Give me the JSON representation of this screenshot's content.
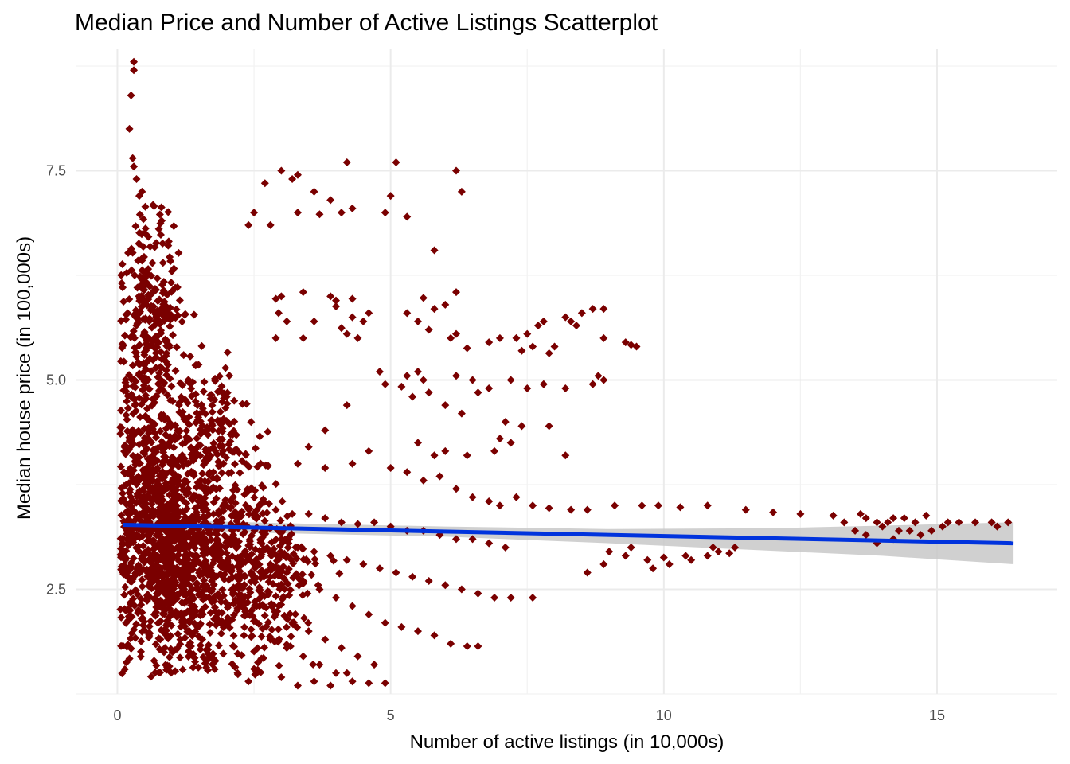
{
  "chart_data": {
    "type": "scatter",
    "title": "Median Price and Number of Active Listings Scatterplot",
    "xlabel": "Number of active listings (in 10,000s)",
    "ylabel": "Median house price (in 100,000s)",
    "xlim": [
      -0.75,
      17.2
    ],
    "ylim": [
      1.25,
      8.95
    ],
    "x_ticks": [
      0,
      5,
      10,
      15
    ],
    "x_tick_labels": [
      "0",
      "5",
      "10",
      "15"
    ],
    "x_minor_ticks": [
      2.5,
      7.5,
      12.5
    ],
    "y_ticks": [
      2.5,
      5.0,
      7.5
    ],
    "y_tick_labels": [
      "2.5",
      "5.0",
      "7.5"
    ],
    "y_minor_ticks": [
      1.25,
      3.75,
      6.25,
      8.75
    ],
    "grid": true,
    "colors": {
      "points": "#7a0000",
      "trend_line": "#0033dd",
      "confidence_band": "#c8c8c8"
    },
    "marker": "diamond",
    "series": [
      {
        "name": "listings",
        "points": [
          [
            0.3,
            8.8
          ],
          [
            0.3,
            8.7
          ],
          [
            0.25,
            8.4
          ],
          [
            0.22,
            8.0
          ],
          [
            0.28,
            7.65
          ],
          [
            0.3,
            7.55
          ],
          [
            0.35,
            7.4
          ],
          [
            0.4,
            7.2
          ],
          [
            0.45,
            7.25
          ],
          [
            3.0,
            7.5
          ],
          [
            3.3,
            7.45
          ],
          [
            4.2,
            7.6
          ],
          [
            5.1,
            7.6
          ],
          [
            6.2,
            7.5
          ],
          [
            6.3,
            7.25
          ],
          [
            2.7,
            7.35
          ],
          [
            3.2,
            7.4
          ],
          [
            3.6,
            7.25
          ],
          [
            3.3,
            7.0
          ],
          [
            3.9,
            7.15
          ],
          [
            4.3,
            7.05
          ],
          [
            4.9,
            7.0
          ],
          [
            5.0,
            7.2
          ],
          [
            5.3,
            6.95
          ],
          [
            4.1,
            7.0
          ],
          [
            3.7,
            6.98
          ],
          [
            2.5,
            7.0
          ],
          [
            2.4,
            6.85
          ],
          [
            2.8,
            6.85
          ],
          [
            5.8,
            6.55
          ],
          [
            3.4,
            6.05
          ],
          [
            3.0,
            6.0
          ],
          [
            2.9,
            5.97
          ],
          [
            3.9,
            6.0
          ],
          [
            4.0,
            5.95
          ],
          [
            4.3,
            5.97
          ],
          [
            4.0,
            5.88
          ],
          [
            6.2,
            6.05
          ],
          [
            2.95,
            5.8
          ],
          [
            4.6,
            5.8
          ],
          [
            4.3,
            5.75
          ],
          [
            4.5,
            5.7
          ],
          [
            5.3,
            5.8
          ],
          [
            5.8,
            5.85
          ],
          [
            6.0,
            5.9
          ],
          [
            5.6,
            5.98
          ],
          [
            3.1,
            5.7
          ],
          [
            3.6,
            5.7
          ],
          [
            4.1,
            5.62
          ],
          [
            4.2,
            5.55
          ],
          [
            5.5,
            5.7
          ],
          [
            5.7,
            5.6
          ],
          [
            6.2,
            5.55
          ],
          [
            6.1,
            5.5
          ],
          [
            2.9,
            5.5
          ],
          [
            3.4,
            5.5
          ],
          [
            4.4,
            5.5
          ],
          [
            6.4,
            5.38
          ],
          [
            6.8,
            5.45
          ],
          [
            7.0,
            5.5
          ],
          [
            7.3,
            5.5
          ],
          [
            7.5,
            5.55
          ],
          [
            7.7,
            5.65
          ],
          [
            7.8,
            5.7
          ],
          [
            8.2,
            5.75
          ],
          [
            8.3,
            5.7
          ],
          [
            8.5,
            5.8
          ],
          [
            8.7,
            5.85
          ],
          [
            8.9,
            5.85
          ],
          [
            8.4,
            5.65
          ],
          [
            8.9,
            5.5
          ],
          [
            9.3,
            5.45
          ],
          [
            9.4,
            5.42
          ],
          [
            9.5,
            5.4
          ],
          [
            8.0,
            5.4
          ],
          [
            7.9,
            5.32
          ],
          [
            7.4,
            5.35
          ],
          [
            7.6,
            5.4
          ],
          [
            4.8,
            5.1
          ],
          [
            4.9,
            4.95
          ],
          [
            5.3,
            5.05
          ],
          [
            5.5,
            5.1
          ],
          [
            5.6,
            5.0
          ],
          [
            5.2,
            4.92
          ],
          [
            6.2,
            5.05
          ],
          [
            6.5,
            5.0
          ],
          [
            6.8,
            4.9
          ],
          [
            7.2,
            5.0
          ],
          [
            7.5,
            4.9
          ],
          [
            7.8,
            4.95
          ],
          [
            8.2,
            4.9
          ],
          [
            8.8,
            5.05
          ],
          [
            8.9,
            5.0
          ],
          [
            8.7,
            4.95
          ],
          [
            5.4,
            4.8
          ],
          [
            5.7,
            4.85
          ],
          [
            6.0,
            4.7
          ],
          [
            6.3,
            4.6
          ],
          [
            6.6,
            4.85
          ],
          [
            7.1,
            4.5
          ],
          [
            7.4,
            4.45
          ],
          [
            7.9,
            4.45
          ],
          [
            8.2,
            4.1
          ],
          [
            7.0,
            4.3
          ],
          [
            6.9,
            4.15
          ],
          [
            7.2,
            4.25
          ],
          [
            6.4,
            4.1
          ],
          [
            6.0,
            4.15
          ],
          [
            5.5,
            4.25
          ],
          [
            5.8,
            4.1
          ],
          [
            4.2,
            4.7
          ],
          [
            3.8,
            4.4
          ],
          [
            3.5,
            4.2
          ],
          [
            3.3,
            4.0
          ],
          [
            3.8,
            3.95
          ],
          [
            4.3,
            4.0
          ],
          [
            4.6,
            4.15
          ],
          [
            5.0,
            3.95
          ],
          [
            5.3,
            3.9
          ],
          [
            5.6,
            3.8
          ],
          [
            5.9,
            3.85
          ],
          [
            6.2,
            3.7
          ],
          [
            6.5,
            3.6
          ],
          [
            6.8,
            3.55
          ],
          [
            7.0,
            3.5
          ],
          [
            7.3,
            3.6
          ],
          [
            7.6,
            3.5
          ],
          [
            7.9,
            3.47
          ],
          [
            8.3,
            3.45
          ],
          [
            8.6,
            3.45
          ],
          [
            9.1,
            3.5
          ],
          [
            9.6,
            3.5
          ],
          [
            9.9,
            3.5
          ],
          [
            10.3,
            3.48
          ],
          [
            10.8,
            3.5
          ],
          [
            11.5,
            3.45
          ],
          [
            12.0,
            3.42
          ],
          [
            12.5,
            3.4
          ],
          [
            13.1,
            3.38
          ],
          [
            13.6,
            3.4
          ],
          [
            9.0,
            2.95
          ],
          [
            9.3,
            2.9
          ],
          [
            9.7,
            2.85
          ],
          [
            10.1,
            2.8
          ],
          [
            10.5,
            2.85
          ],
          [
            10.8,
            2.9
          ],
          [
            11.0,
            2.95
          ],
          [
            11.2,
            2.93
          ],
          [
            8.6,
            2.7
          ],
          [
            8.9,
            2.8
          ],
          [
            9.4,
            3.0
          ],
          [
            9.8,
            2.75
          ],
          [
            10.4,
            2.9
          ],
          [
            10.9,
            3.0
          ],
          [
            11.3,
            3.0
          ],
          [
            10.0,
            2.88
          ],
          [
            13.3,
            3.3
          ],
          [
            13.5,
            3.2
          ],
          [
            13.7,
            3.15
          ],
          [
            13.9,
            3.05
          ],
          [
            14.0,
            3.25
          ],
          [
            14.1,
            3.3
          ],
          [
            14.2,
            3.1
          ],
          [
            14.3,
            3.2
          ],
          [
            14.4,
            3.35
          ],
          [
            14.5,
            3.2
          ],
          [
            14.6,
            3.3
          ],
          [
            14.7,
            3.15
          ],
          [
            14.9,
            3.2
          ],
          [
            15.1,
            3.25
          ],
          [
            15.4,
            3.3
          ],
          [
            15.7,
            3.3
          ],
          [
            16.0,
            3.3
          ],
          [
            16.3,
            3.3
          ],
          [
            13.7,
            3.35
          ],
          [
            13.9,
            3.3
          ],
          [
            14.2,
            3.35
          ],
          [
            14.8,
            3.38
          ],
          [
            15.2,
            3.3
          ],
          [
            16.1,
            3.25
          ],
          [
            2.6,
            3.5
          ],
          [
            2.9,
            3.45
          ],
          [
            3.2,
            3.4
          ],
          [
            3.5,
            3.4
          ],
          [
            3.8,
            3.35
          ],
          [
            4.1,
            3.3
          ],
          [
            4.4,
            3.28
          ],
          [
            4.7,
            3.3
          ],
          [
            5.0,
            3.25
          ],
          [
            5.3,
            3.2
          ],
          [
            5.6,
            3.2
          ],
          [
            5.9,
            3.15
          ],
          [
            6.2,
            3.1
          ],
          [
            6.5,
            3.1
          ],
          [
            6.8,
            3.05
          ],
          [
            7.1,
            3.0
          ],
          [
            2.7,
            3.2
          ],
          [
            3.0,
            3.1
          ],
          [
            3.3,
            3.0
          ],
          [
            3.6,
            2.95
          ],
          [
            3.9,
            2.9
          ],
          [
            4.2,
            2.85
          ],
          [
            4.5,
            2.8
          ],
          [
            4.8,
            2.75
          ],
          [
            5.1,
            2.7
          ],
          [
            5.4,
            2.65
          ],
          [
            5.7,
            2.6
          ],
          [
            6.0,
            2.55
          ],
          [
            6.3,
            2.5
          ],
          [
            6.6,
            2.45
          ],
          [
            6.9,
            2.4
          ],
          [
            7.2,
            2.4
          ],
          [
            2.8,
            2.8
          ],
          [
            3.1,
            2.7
          ],
          [
            3.4,
            2.6
          ],
          [
            3.7,
            2.5
          ],
          [
            4.0,
            2.4
          ],
          [
            4.3,
            2.3
          ],
          [
            4.6,
            2.2
          ],
          [
            4.9,
            2.1
          ],
          [
            5.2,
            2.05
          ],
          [
            5.5,
            2.0
          ],
          [
            5.8,
            1.95
          ],
          [
            6.1,
            1.85
          ],
          [
            6.4,
            1.82
          ],
          [
            6.6,
            1.82
          ],
          [
            7.6,
            2.4
          ],
          [
            2.6,
            2.3
          ],
          [
            2.9,
            2.2
          ],
          [
            3.2,
            2.1
          ],
          [
            3.5,
            2.0
          ],
          [
            3.8,
            1.9
          ],
          [
            4.1,
            1.8
          ],
          [
            4.4,
            1.7
          ],
          [
            4.7,
            1.6
          ],
          [
            2.8,
            1.9
          ],
          [
            3.1,
            1.8
          ],
          [
            3.4,
            1.7
          ],
          [
            3.7,
            1.6
          ],
          [
            4.0,
            1.5
          ],
          [
            4.3,
            1.4
          ],
          [
            4.6,
            1.38
          ],
          [
            4.9,
            1.38
          ],
          [
            2.2,
            1.5
          ],
          [
            2.5,
            1.55
          ],
          [
            3.0,
            1.45
          ],
          [
            3.3,
            1.35
          ],
          [
            3.6,
            1.4
          ],
          [
            3.9,
            1.35
          ],
          [
            4.2,
            1.5
          ],
          [
            2.4,
            1.4
          ]
        ],
        "dense_clusters": [
          {
            "x_center": 0.8,
            "x_spread": 0.75,
            "y_center": 3.2,
            "y_spread": 1.3,
            "count": 900
          },
          {
            "x_center": 0.6,
            "x_spread": 0.5,
            "y_center": 5.6,
            "y_spread": 1.1,
            "count": 300
          },
          {
            "x_center": 1.7,
            "x_spread": 0.9,
            "y_center": 2.9,
            "y_spread": 1.1,
            "count": 500
          },
          {
            "x_center": 2.7,
            "x_spread": 0.8,
            "y_center": 2.6,
            "y_spread": 0.9,
            "count": 250
          },
          {
            "x_center": 1.6,
            "x_spread": 0.7,
            "y_center": 4.4,
            "y_spread": 0.6,
            "count": 150
          }
        ]
      }
    ],
    "trend_line": {
      "x": [
        0.1,
        16.4
      ],
      "y": [
        3.27,
        3.05
      ]
    },
    "confidence_band": {
      "x": [
        0.1,
        3,
        6,
        9,
        12,
        14,
        16.4
      ],
      "lower": [
        3.2,
        3.17,
        3.13,
        3.05,
        2.96,
        2.9,
        2.8
      ],
      "upper": [
        3.34,
        3.29,
        3.25,
        3.22,
        3.23,
        3.26,
        3.3
      ]
    }
  }
}
